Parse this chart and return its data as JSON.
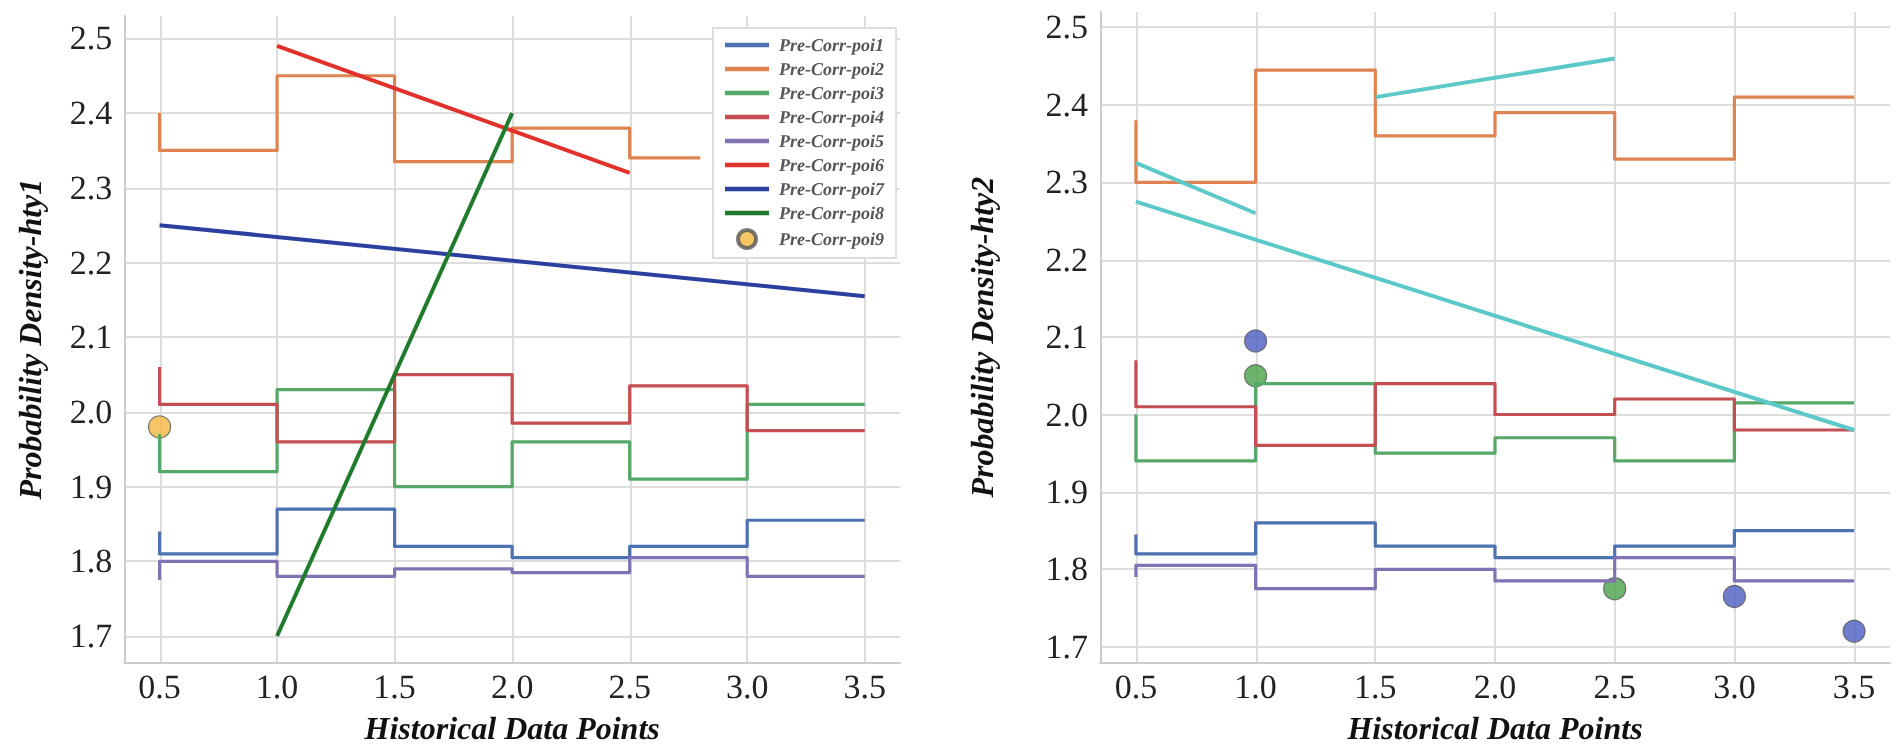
{
  "chart_data": [
    {
      "type": "step",
      "xlabel": "Historical Data Points",
      "ylabel": "Probability Density-hty1",
      "xlim": [
        0.35,
        3.65
      ],
      "xticks": [
        0.5,
        {
          "value": 1,
          "label": "1.0"
        },
        1.5,
        {
          "value": 2,
          "label": "2.0"
        },
        2.5,
        {
          "value": 3,
          "label": "3.0"
        },
        3.5
      ],
      "ylim": [
        1.665,
        2.53
      ],
      "yticks": [
        1.7,
        1.8,
        1.9,
        {
          "value": 2,
          "label": "2.0"
        },
        2.1,
        2.2,
        2.3,
        2.4,
        2.5
      ],
      "grid": true,
      "legend": "top right",
      "series": [
        {
          "name": "Pre-Corr-poi1",
          "color": "#4c72b0",
          "x": [
            0.5,
            1.0,
            1.5,
            2.0,
            2.5,
            3.0,
            3.5
          ],
          "values": [
            1.84,
            1.81,
            1.87,
            1.82,
            1.805,
            1.82,
            1.855
          ]
        },
        {
          "name": "Pre-Corr-poi2",
          "color": "#dd8452",
          "x": [
            0.5,
            1.0,
            1.5,
            2.0,
            2.5,
            2.8
          ],
          "values": [
            2.4,
            2.35,
            2.45,
            2.335,
            2.38,
            2.34
          ]
        },
        {
          "name": "Pre-Corr-poi3",
          "color": "#55a868",
          "x": [
            0.5,
            1.0,
            1.5,
            2.0,
            2.5,
            3.0,
            3.5
          ],
          "values": [
            1.97,
            1.92,
            2.03,
            1.9,
            1.96,
            1.91,
            2.01
          ]
        },
        {
          "name": "Pre-Corr-poi4",
          "color": "#c44e52",
          "x": [
            0.5,
            1.0,
            1.5,
            2.0,
            2.5,
            3.0,
            3.5
          ],
          "values": [
            2.06,
            2.01,
            1.96,
            2.05,
            1.985,
            2.035,
            1.975
          ]
        },
        {
          "name": "Pre-Corr-poi5",
          "color": "#8172b3",
          "x": [
            0.5,
            1.0,
            1.5,
            2.0,
            2.5,
            3.0,
            3.5
          ],
          "values": [
            1.775,
            1.8,
            1.78,
            1.79,
            1.785,
            1.805,
            1.78
          ]
        },
        {
          "name": "Pre-Corr-poi6",
          "type": "line",
          "color": "#e0312b",
          "x": [
            1.0,
            2.5
          ],
          "values": [
            2.49,
            2.32
          ]
        },
        {
          "name": "Pre-Corr-poi7",
          "type": "line",
          "color": "#2b3f9e",
          "x": [
            0.5,
            3.5
          ],
          "values": [
            2.25,
            2.155
          ]
        },
        {
          "name": "Pre-Corr-poi8",
          "type": "line",
          "color": "#1f7a2c",
          "x": [
            1.0,
            2.0
          ],
          "values": [
            1.7,
            2.4
          ]
        },
        {
          "name": "Pre-Corr-poi9",
          "type": "scatter",
          "marker": "circle",
          "color": "#f2b640",
          "x": [
            0.5
          ],
          "values": [
            1.98
          ]
        }
      ]
    },
    {
      "type": "step",
      "xlabel": "Historical Data Points",
      "ylabel": "Probability Density-hty2",
      "xlim": [
        0.35,
        3.65
      ],
      "xticks": [
        0.5,
        {
          "value": 1,
          "label": "1.0"
        },
        1.5,
        {
          "value": 2,
          "label": "2.0"
        },
        2.5,
        {
          "value": 3,
          "label": "3.0"
        },
        3.5
      ],
      "ylim": [
        1.68,
        2.52
      ],
      "yticks": [
        1.7,
        1.8,
        1.9,
        {
          "value": 2,
          "label": "2.0"
        },
        2.1,
        2.2,
        2.3,
        2.4,
        2.5
      ],
      "grid": true,
      "series": [
        {
          "color": "#4c72b0",
          "x": [
            0.5,
            1.0,
            1.5,
            2.0,
            2.5,
            3.0,
            3.5
          ],
          "values": [
            1.845,
            1.82,
            1.86,
            1.83,
            1.815,
            1.83,
            1.85
          ]
        },
        {
          "color": "#dd8452",
          "x": [
            0.5,
            1.0,
            1.5,
            2.0,
            2.5,
            3.0,
            3.5
          ],
          "values": [
            2.38,
            2.3,
            2.445,
            2.36,
            2.39,
            2.33,
            2.41
          ]
        },
        {
          "color": "#55a868",
          "x": [
            0.5,
            1.0,
            1.5,
            2.0,
            2.5,
            3.0,
            3.5
          ],
          "values": [
            2.0,
            1.94,
            2.04,
            1.95,
            1.97,
            1.94,
            2.015
          ]
        },
        {
          "color": "#c44e52",
          "x": [
            0.5,
            1.0,
            1.5,
            2.0,
            2.5,
            3.0,
            3.5
          ],
          "values": [
            2.07,
            2.01,
            1.96,
            2.04,
            2.0,
            2.02,
            1.98
          ]
        },
        {
          "color": "#8172b3",
          "x": [
            0.5,
            1.0,
            1.5,
            2.0,
            2.5,
            3.0,
            3.5
          ],
          "values": [
            1.79,
            1.805,
            1.775,
            1.8,
            1.785,
            1.815,
            1.785
          ]
        },
        {
          "type": "line",
          "color": "#5cc8c8",
          "x": [
            0.5,
            1.0
          ],
          "values": [
            2.325,
            2.26
          ]
        },
        {
          "type": "line",
          "color": "#5cc8c8",
          "x": [
            0.5,
            3.5
          ],
          "values": [
            2.275,
            1.98
          ]
        },
        {
          "type": "line",
          "color": "#5cc8c8",
          "x": [
            1.5,
            2.5
          ],
          "values": [
            2.41,
            2.46
          ]
        },
        {
          "type": "scatter",
          "marker": "circle",
          "color": "#4a5cc0",
          "x": [
            1.0,
            3.0,
            3.5
          ],
          "values": [
            2.095,
            1.765,
            1.72
          ]
        },
        {
          "type": "scatter",
          "marker": "circle",
          "color": "#4aa04a",
          "x": [
            1.0,
            2.5
          ],
          "values": [
            2.05,
            1.775
          ]
        }
      ]
    }
  ]
}
